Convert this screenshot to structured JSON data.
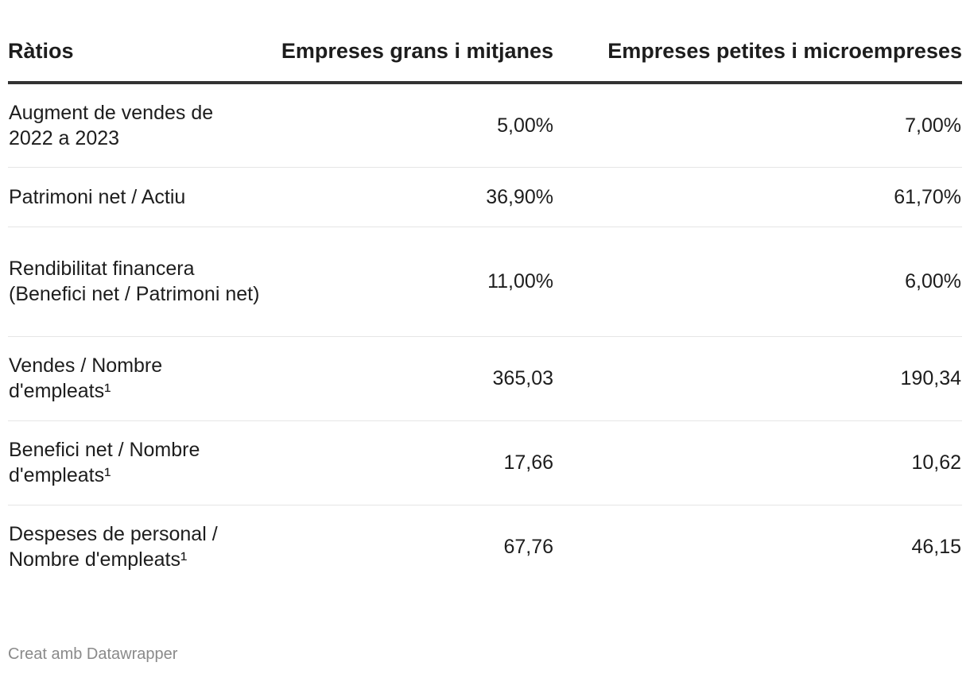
{
  "chart_data": {
    "type": "table",
    "columns": [
      "Ràtios",
      "Empreses grans i mitjanes",
      "Empreses petites i microempreses"
    ],
    "rows": [
      {
        "label": "Augment de vendes de 2022 a 2023",
        "values": [
          "5,00%",
          "7,00%"
        ]
      },
      {
        "label": "Patrimoni net / Actiu",
        "values": [
          "36,90%",
          "61,70%"
        ]
      },
      {
        "label": "Rendibilitat financera (Benefici net / Patrimoni net)",
        "values": [
          "11,00%",
          "6,00%"
        ]
      },
      {
        "label": "Vendes / Nombre d'empleats¹",
        "values": [
          "365,03",
          "190,34"
        ]
      },
      {
        "label": "Benefici net / Nombre d'empleats¹",
        "values": [
          "17,66",
          "10,62"
        ]
      },
      {
        "label": "Despeses de personal / Nombre d'empleats¹",
        "values": [
          "67,76",
          "46,15"
        ]
      }
    ]
  },
  "footer": {
    "credit": "Creat amb Datawrapper"
  }
}
